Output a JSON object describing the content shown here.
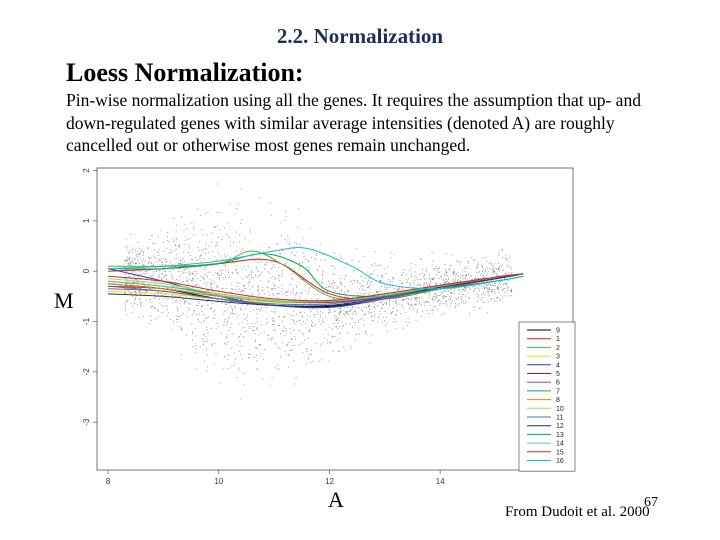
{
  "slide": {
    "section_title": "2.2. Normalization",
    "heading": "Loess Normalization:",
    "body": "Pin-wise normalization using all the genes. It requires the assumption that up- and down-regulated genes with similar average intensities (denoted A) are roughly cancelled out or otherwise most genes remain unchanged.",
    "source": "From Dudoit et al. 2000",
    "page_number": "67"
  },
  "chart_data": {
    "type": "scatter",
    "title": "",
    "xlabel": "A",
    "ylabel": "M",
    "xlim": [
      7.8,
      16.4
    ],
    "ylim": [
      -3.95,
      2.05
    ],
    "x_ticks": [
      8,
      10,
      12,
      14
    ],
    "y_ticks": [
      2,
      1,
      0,
      -1,
      -2,
      -3
    ],
    "grid": false,
    "legend_position": "bottom-right",
    "scatter_cloud": {
      "description_points": "dense grey/black scatter of genes",
      "x_range": [
        8.3,
        15.3
      ],
      "color": "#333333"
    },
    "series": [
      {
        "name": "9",
        "color": "#000000",
        "x": [
          8.0,
          9.0,
          10.0,
          11.0,
          12.0,
          13.0,
          14.0,
          15.0,
          15.5
        ],
        "y": [
          -0.25,
          -0.35,
          -0.55,
          -0.68,
          -0.7,
          -0.55,
          -0.3,
          -0.15,
          -0.05
        ]
      },
      {
        "name": "1",
        "color": "#e41a1c",
        "x": [
          8.0,
          9.0,
          10.0,
          11.0,
          12.0,
          13.0,
          14.0,
          15.0,
          15.5
        ],
        "y": [
          0.0,
          0.05,
          0.15,
          0.2,
          -0.45,
          -0.55,
          -0.35,
          -0.15,
          -0.05
        ]
      },
      {
        "name": "2",
        "color": "#4daf4a",
        "x": [
          8.0,
          9.0,
          10.0,
          10.6,
          11.2,
          12.0,
          13.0,
          14.0,
          15.0,
          15.5
        ],
        "y": [
          0.1,
          0.1,
          0.15,
          0.4,
          0.1,
          -0.5,
          -0.55,
          -0.35,
          -0.2,
          -0.1
        ]
      },
      {
        "name": "3",
        "color": "#ffd700",
        "x": [
          8.0,
          9.0,
          10.0,
          11.0,
          12.0,
          13.0,
          14.0,
          15.0,
          15.5
        ],
        "y": [
          -0.4,
          -0.45,
          -0.55,
          -0.62,
          -0.62,
          -0.5,
          -0.3,
          -0.15,
          -0.05
        ]
      },
      {
        "name": "4",
        "color": "#1f3fa8",
        "x": [
          8.0,
          9.0,
          10.0,
          11.0,
          12.0,
          13.0,
          14.0,
          15.0,
          15.5
        ],
        "y": [
          0.05,
          -0.2,
          -0.5,
          -0.68,
          -0.72,
          -0.55,
          -0.32,
          -0.15,
          -0.05
        ]
      },
      {
        "name": "5",
        "color": "#b2182b",
        "x": [
          8.0,
          9.0,
          10.0,
          11.0,
          12.0,
          13.0,
          14.0,
          15.0,
          15.5
        ],
        "y": [
          -0.3,
          -0.35,
          -0.5,
          -0.6,
          -0.62,
          -0.5,
          -0.28,
          -0.12,
          -0.05
        ]
      },
      {
        "name": "6",
        "color": "#984ea3",
        "x": [
          8.0,
          9.0,
          10.0,
          11.0,
          12.0,
          13.0,
          14.0,
          15.0,
          15.5
        ],
        "y": [
          -0.35,
          -0.4,
          -0.55,
          -0.68,
          -0.68,
          -0.55,
          -0.32,
          -0.12,
          -0.05
        ]
      },
      {
        "name": "7",
        "color": "#1b9e77",
        "x": [
          8.0,
          9.0,
          10.0,
          11.0,
          12.0,
          13.0,
          14.0,
          15.0,
          15.5
        ],
        "y": [
          -0.2,
          -0.3,
          -0.45,
          -0.58,
          -0.6,
          -0.48,
          -0.3,
          -0.15,
          -0.05
        ]
      },
      {
        "name": "8",
        "color": "#ff7f00",
        "x": [
          8.0,
          9.0,
          10.0,
          11.0,
          12.0,
          13.0,
          14.0,
          15.0,
          15.5
        ],
        "y": [
          -0.25,
          -0.35,
          -0.5,
          -0.6,
          -0.6,
          -0.45,
          -0.28,
          -0.12,
          -0.05
        ]
      },
      {
        "name": "10",
        "color": "#a6d854",
        "x": [
          8.0,
          9.0,
          10.0,
          11.0,
          12.0,
          13.0,
          14.0,
          15.0,
          15.5
        ],
        "y": [
          -0.15,
          -0.25,
          -0.45,
          -0.58,
          -0.6,
          -0.48,
          -0.3,
          -0.12,
          -0.05
        ]
      },
      {
        "name": "11",
        "color": "#377eb8",
        "x": [
          8.0,
          9.0,
          10.0,
          11.0,
          12.0,
          13.0,
          14.0,
          15.0,
          15.5
        ],
        "y": [
          -0.3,
          -0.4,
          -0.55,
          -0.65,
          -0.65,
          -0.5,
          -0.3,
          -0.15,
          -0.05
        ]
      },
      {
        "name": "12",
        "color": "#2c2c7a",
        "x": [
          8.0,
          9.0,
          10.0,
          11.0,
          12.0,
          13.0,
          14.0,
          15.0,
          15.5
        ],
        "y": [
          -0.45,
          -0.5,
          -0.6,
          -0.68,
          -0.68,
          -0.52,
          -0.32,
          -0.15,
          -0.05
        ]
      },
      {
        "name": "13",
        "color": "#00a651",
        "x": [
          8.0,
          9.0,
          10.0,
          10.8,
          11.5,
          12.0,
          13.0,
          14.0,
          15.0,
          15.5
        ],
        "y": [
          0.05,
          0.05,
          0.15,
          0.35,
          0.1,
          -0.4,
          -0.5,
          -0.35,
          -0.2,
          -0.1
        ]
      },
      {
        "name": "14",
        "color": "#66c2a5",
        "x": [
          8.0,
          9.0,
          10.0,
          11.0,
          12.0,
          13.0,
          14.0,
          15.0,
          15.5
        ],
        "y": [
          -0.2,
          -0.3,
          -0.48,
          -0.6,
          -0.6,
          -0.48,
          -0.3,
          -0.12,
          -0.05
        ]
      },
      {
        "name": "15",
        "color": "#d62728",
        "x": [
          8.0,
          9.0,
          10.0,
          11.0,
          12.0,
          13.0,
          14.0,
          15.0,
          15.5
        ],
        "y": [
          -0.1,
          -0.2,
          -0.4,
          -0.55,
          -0.58,
          -0.45,
          -0.28,
          -0.12,
          -0.05
        ]
      },
      {
        "name": "16",
        "color": "#17becf",
        "x": [
          8.0,
          9.0,
          10.0,
          11.0,
          11.6,
          12.4,
          13.0,
          14.0,
          15.0,
          15.5
        ],
        "y": [
          0.05,
          0.1,
          0.2,
          0.4,
          0.45,
          0.1,
          -0.25,
          -0.35,
          -0.2,
          -0.1
        ]
      }
    ]
  }
}
